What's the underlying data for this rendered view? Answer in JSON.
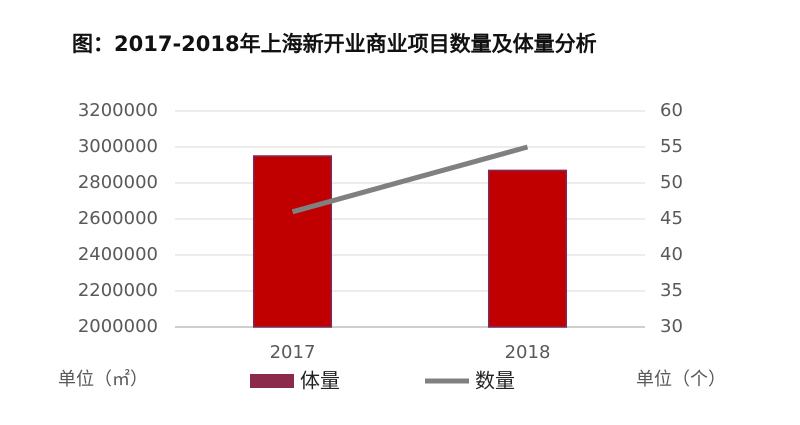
{
  "chart_data": {
    "type": "bar",
    "title": "图：2017-2018年上海新开业商业项目数量及体量分析",
    "categories": [
      "2017",
      "2018"
    ],
    "series": [
      {
        "name": "体量",
        "type": "bar",
        "color": "#c00000",
        "values": [
          2950000,
          2870000
        ]
      },
      {
        "name": "数量",
        "type": "line",
        "axis": "y2",
        "color": "#808080",
        "values": [
          46,
          55
        ]
      }
    ],
    "ylim": [
      2000000,
      3200000
    ],
    "yticks": [
      2000000,
      2200000,
      2400000,
      2600000,
      2800000,
      3000000,
      3200000
    ],
    "y2lim": [
      30,
      60
    ],
    "y2ticks": [
      30,
      35,
      40,
      45,
      50,
      55,
      60
    ],
    "y_label": "单位（㎡）",
    "y2_label": "单位（个）",
    "grid": true
  }
}
